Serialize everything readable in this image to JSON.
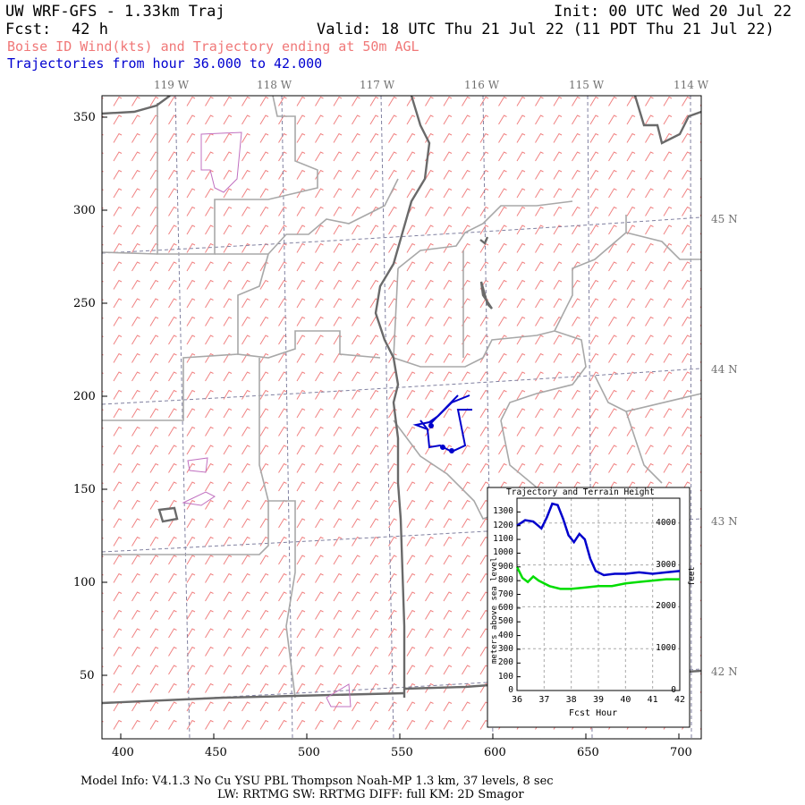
{
  "header": {
    "title": "UW WRF-GFS - 1.33km Traj",
    "init": "Init: 00 UTC Wed 20 Jul 22",
    "fcst_label": "Fcst:",
    "fcst_value": "42 h",
    "valid": "Valid: 18 UTC Thu 21 Jul 22 (11 PDT Thu 21 Jul 22)",
    "subtitle_wind": "Boise ID Wind(kts) and Trajectory ending at 50m AGL",
    "subtitle_traj": "Trajectories from hour  36.000 to  42.000"
  },
  "map": {
    "lon_labels": [
      "119 W",
      "118 W",
      "117 W",
      "116 W",
      "115 W",
      "114 W"
    ],
    "lat_labels": [
      "45 N",
      "44 N",
      "43 N",
      "42 N"
    ],
    "x_ticks": [
      "400",
      "450",
      "500",
      "550",
      "600",
      "650",
      "700"
    ],
    "y_ticks": [
      "350",
      "300",
      "250",
      "200",
      "150",
      "100",
      "50"
    ],
    "colors": {
      "barb": "#f08080",
      "border": "#a0a0a0",
      "river": "#555555",
      "trajectory": "#0000cc",
      "terrain_patch": "#c070c0"
    }
  },
  "inset": {
    "title": "Trajectory and Terrain Height",
    "ylabel_left": "meters above sea level",
    "ylabel_right": "feet",
    "xlabel": "Fcst Hour",
    "y_ticks_m": [
      "1300",
      "1200",
      "1100",
      "1000",
      "900",
      "800",
      "700",
      "600",
      "500",
      "400",
      "300",
      "200",
      "100",
      "0"
    ],
    "y_ticks_ft": [
      "4000",
      "3000",
      "2000",
      "1000",
      "0"
    ],
    "x_ticks": [
      "36",
      "37",
      "38",
      "39",
      "40",
      "41",
      "42"
    ]
  },
  "chart_data": {
    "type": "line",
    "title": "Trajectory and Terrain Height",
    "xlabel": "Fcst Hour",
    "ylabel": "meters above sea level",
    "xlim": [
      36,
      42
    ],
    "ylim": [
      0,
      1400
    ],
    "series": [
      {
        "color": "#0000cc",
        "x": [
          36.0,
          36.3,
          36.6,
          36.9,
          37.1,
          37.3,
          37.5,
          37.7,
          37.9,
          38.1,
          38.3,
          38.5,
          38.7,
          38.9,
          39.2,
          39.6,
          40.0,
          40.5,
          41.0,
          41.5,
          42.0
        ],
        "y": [
          1200,
          1240,
          1230,
          1180,
          1260,
          1360,
          1350,
          1250,
          1130,
          1080,
          1140,
          1100,
          960,
          870,
          840,
          850,
          850,
          860,
          850,
          860,
          870
        ]
      },
      {
        "color": "#00dd00",
        "x": [
          36.0,
          36.2,
          36.4,
          36.6,
          36.8,
          37.2,
          37.6,
          38.0,
          38.5,
          39.0,
          39.5,
          40.0,
          40.5,
          41.0,
          41.5,
          42.0
        ],
        "y": [
          900,
          820,
          790,
          830,
          800,
          760,
          740,
          740,
          750,
          760,
          760,
          780,
          790,
          800,
          810,
          810
        ]
      }
    ]
  },
  "footer": {
    "line1": "Model Info: V4.1.3   No Cu   YSU PBL  Thompson    Noah-MP   1.3 km,  37 levels,    8 sec",
    "line2": "LW: RRTMG SW: RRTMG    DIFF: full   KM: 2D Smagor"
  }
}
